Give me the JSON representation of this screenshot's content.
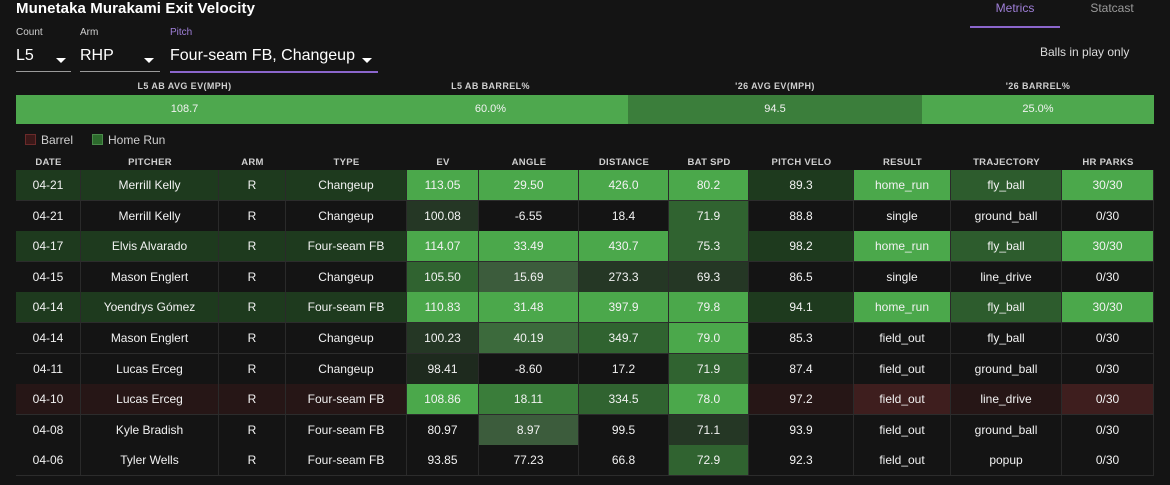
{
  "title": "Munetaka Murakami Exit Velocity",
  "tabs": [
    {
      "label": "Metrics",
      "active": true
    },
    {
      "label": "Statcast",
      "active": false
    }
  ],
  "filters": {
    "count": {
      "label": "Count",
      "value": "L5"
    },
    "arm": {
      "label": "Arm",
      "value": "RHP"
    },
    "pitch": {
      "label": "Pitch",
      "value": "Four-seam FB, Changeup"
    }
  },
  "note": "Balls in play only",
  "summary": [
    {
      "label": "L5 AB AVG EV(MPH)",
      "value": "108.7",
      "color": "#4ea84e"
    },
    {
      "label": "L5 AB BARREL%",
      "value": "60.0%",
      "color": "#4ea84e"
    },
    {
      "label": "'26 AVG EV(MPH)",
      "value": "94.5",
      "color": "#3b7e3b"
    },
    {
      "label": "'26 BARREL%",
      "value": "25.0%",
      "color": "#4ea84e"
    }
  ],
  "legend": [
    {
      "label": "Barrel",
      "color": "#3a1818"
    },
    {
      "label": "Home Run",
      "color": "#2c6a2c"
    }
  ],
  "columns": [
    "DATE",
    "PITCHER",
    "ARM",
    "TYPE",
    "EV",
    "ANGLE",
    "DISTANCE",
    "BAT SPD",
    "PITCH VELO",
    "RESULT",
    "TRAJECTORY",
    "HR PARKS"
  ],
  "rows": [
    {
      "date": "04-21",
      "pitcher": "Merrill Kelly",
      "arm": "R",
      "type": "Changeup",
      "ev": "113.05",
      "angle": "29.50",
      "distance": "426.0",
      "bat_spd": "80.2",
      "pitch_velo": "89.3",
      "result": "home_run",
      "trajectory": "fly_ball",
      "hr_parks": "30/30",
      "kind": "hr",
      "colors": [
        "#1e3a1e",
        "#1e3a1e",
        "#1e3a1e",
        "#1e3a1e",
        "#4ba84b",
        "#4ba84b",
        "#4ba84b",
        "#4ba84b",
        "#1e3a1e",
        "#4ba84b",
        "#2d5c2d",
        "#4ba84b"
      ]
    },
    {
      "date": "04-21",
      "pitcher": "Merrill Kelly",
      "arm": "R",
      "type": "Changeup",
      "ev": "100.08",
      "angle": "-6.55",
      "distance": "18.4",
      "bat_spd": "71.9",
      "pitch_velo": "88.8",
      "result": "single",
      "trajectory": "ground_ball",
      "hr_parks": "0/30",
      "kind": "none",
      "colors": [
        "#141414",
        "#141414",
        "#141414",
        "#141414",
        "#253725",
        "#141414",
        "#141414",
        "#306330",
        "#141414",
        "#141414",
        "#141414",
        "#141414"
      ]
    },
    {
      "date": "04-17",
      "pitcher": "Elvis Alvarado",
      "arm": "R",
      "type": "Four-seam FB",
      "ev": "114.07",
      "angle": "33.49",
      "distance": "430.7",
      "bat_spd": "75.3",
      "pitch_velo": "98.2",
      "result": "home_run",
      "trajectory": "fly_ball",
      "hr_parks": "30/30",
      "kind": "hr",
      "colors": [
        "#1e3a1e",
        "#1e3a1e",
        "#1e3a1e",
        "#1e3a1e",
        "#4ba84b",
        "#4ba84b",
        "#4ba84b",
        "#306330",
        "#1e3a1e",
        "#4ba84b",
        "#2d5c2d",
        "#4ba84b"
      ]
    },
    {
      "date": "04-15",
      "pitcher": "Mason Englert",
      "arm": "R",
      "type": "Changeup",
      "ev": "105.50",
      "angle": "15.69",
      "distance": "273.3",
      "bat_spd": "69.3",
      "pitch_velo": "86.5",
      "result": "single",
      "trajectory": "line_drive",
      "hr_parks": "0/30",
      "kind": "none",
      "colors": [
        "#141414",
        "#141414",
        "#141414",
        "#141414",
        "#306330",
        "#3c5c3c",
        "#253725",
        "#253725",
        "#141414",
        "#141414",
        "#141414",
        "#141414"
      ]
    },
    {
      "date": "04-14",
      "pitcher": "Yoendrys Gómez",
      "arm": "R",
      "type": "Four-seam FB",
      "ev": "110.83",
      "angle": "31.48",
      "distance": "397.9",
      "bat_spd": "79.8",
      "pitch_velo": "94.1",
      "result": "home_run",
      "trajectory": "fly_ball",
      "hr_parks": "30/30",
      "kind": "hr",
      "colors": [
        "#1e3a1e",
        "#1e3a1e",
        "#1e3a1e",
        "#1e3a1e",
        "#4ba84b",
        "#4ba84b",
        "#4ba84b",
        "#4ba84b",
        "#1e3a1e",
        "#4ba84b",
        "#2d5c2d",
        "#4ba84b"
      ]
    },
    {
      "date": "04-14",
      "pitcher": "Mason Englert",
      "arm": "R",
      "type": "Changeup",
      "ev": "100.23",
      "angle": "40.19",
      "distance": "349.7",
      "bat_spd": "79.0",
      "pitch_velo": "85.3",
      "result": "field_out",
      "trajectory": "fly_ball",
      "hr_parks": "0/30",
      "kind": "none",
      "colors": [
        "#141414",
        "#141414",
        "#141414",
        "#141414",
        "#253725",
        "#3c6a3c",
        "#306330",
        "#4ba84b",
        "#141414",
        "#141414",
        "#141414",
        "#141414"
      ]
    },
    {
      "date": "04-11",
      "pitcher": "Lucas Erceg",
      "arm": "R",
      "type": "Changeup",
      "ev": "98.41",
      "angle": "-8.60",
      "distance": "17.2",
      "bat_spd": "71.9",
      "pitch_velo": "87.4",
      "result": "field_out",
      "trajectory": "ground_ball",
      "hr_parks": "0/30",
      "kind": "none",
      "colors": [
        "#141414",
        "#141414",
        "#141414",
        "#141414",
        "#1e2a1e",
        "#141414",
        "#141414",
        "#306330",
        "#141414",
        "#141414",
        "#141414",
        "#141414"
      ]
    },
    {
      "date": "04-10",
      "pitcher": "Lucas Erceg",
      "arm": "R",
      "type": "Four-seam FB",
      "ev": "108.86",
      "angle": "18.11",
      "distance": "334.5",
      "bat_spd": "78.0",
      "pitch_velo": "97.2",
      "result": "field_out",
      "trajectory": "line_drive",
      "hr_parks": "0/30",
      "kind": "barrel",
      "colors": [
        "#261616",
        "#261616",
        "#261616",
        "#261616",
        "#4ba84b",
        "#3a7d3a",
        "#306330",
        "#4ba84b",
        "#261616",
        "#3e1e1e",
        "#261616",
        "#3e1e1e"
      ]
    },
    {
      "date": "04-08",
      "pitcher": "Kyle Bradish",
      "arm": "R",
      "type": "Four-seam FB",
      "ev": "80.97",
      "angle": "8.97",
      "distance": "99.5",
      "bat_spd": "71.1",
      "pitch_velo": "93.9",
      "result": "field_out",
      "trajectory": "ground_ball",
      "hr_parks": "0/30",
      "kind": "none",
      "colors": [
        "#141414",
        "#141414",
        "#141414",
        "#141414",
        "#141414",
        "#3c5c3c",
        "#141414",
        "#253725",
        "#141414",
        "#141414",
        "#141414",
        "#141414"
      ]
    },
    {
      "date": "04-06",
      "pitcher": "Tyler Wells",
      "arm": "R",
      "type": "Four-seam FB",
      "ev": "93.85",
      "angle": "77.23",
      "distance": "66.8",
      "bat_spd": "72.9",
      "pitch_velo": "92.3",
      "result": "field_out",
      "trajectory": "popup",
      "hr_parks": "0/30",
      "kind": "none",
      "colors": [
        "#141414",
        "#141414",
        "#141414",
        "#141414",
        "#141414",
        "#141414",
        "#141414",
        "#306330",
        "#141414",
        "#141414",
        "#141414",
        "#141414"
      ]
    }
  ]
}
